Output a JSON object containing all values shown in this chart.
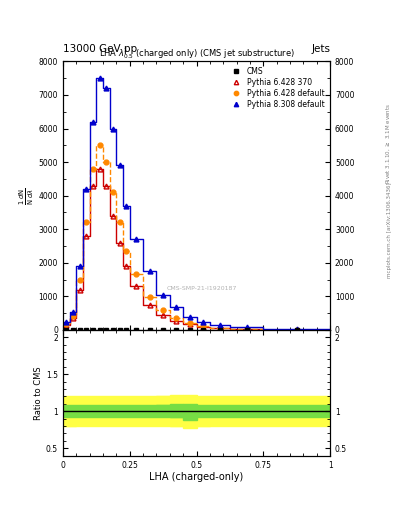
{
  "title": "13000 GeV pp",
  "title_right": "Jets",
  "plot_title": "LHA $\\lambda^{1}_{0.5}$ (charged only) (CMS jet substructure)",
  "xlabel": "LHA (charged-only)",
  "watermark": "CMS-SMP-21-I1920187",
  "cms_x": [
    0.0125,
    0.0375,
    0.0625,
    0.0875,
    0.1125,
    0.1375,
    0.1625,
    0.1875,
    0.2125,
    0.2375,
    0.275,
    0.325,
    0.375,
    0.425,
    0.475,
    0.525,
    0.5875,
    0.6875,
    0.875
  ],
  "cms_y": [
    0,
    0,
    0,
    0,
    0,
    0,
    0,
    0,
    0,
    0,
    0,
    0,
    0,
    0,
    0,
    0,
    0,
    0,
    0
  ],
  "pythia6_370_x": [
    0.0125,
    0.0375,
    0.0625,
    0.0875,
    0.1125,
    0.1375,
    0.1625,
    0.1875,
    0.2125,
    0.2375,
    0.275,
    0.325,
    0.375,
    0.425,
    0.475,
    0.525,
    0.5875,
    0.6875,
    0.875
  ],
  "pythia6_370_y": [
    150,
    350,
    1200,
    2800,
    4300,
    4800,
    4300,
    3400,
    2600,
    1900,
    1300,
    750,
    450,
    270,
    180,
    90,
    50,
    25,
    4
  ],
  "pythia6_def_x": [
    0.0125,
    0.0375,
    0.0625,
    0.0875,
    0.1125,
    0.1375,
    0.1625,
    0.1875,
    0.2125,
    0.2375,
    0.275,
    0.325,
    0.375,
    0.425,
    0.475,
    0.525,
    0.5875,
    0.6875,
    0.875
  ],
  "pythia6_def_y": [
    180,
    420,
    1500,
    3200,
    4800,
    5500,
    5000,
    4100,
    3200,
    2350,
    1650,
    980,
    590,
    340,
    195,
    115,
    65,
    32,
    5
  ],
  "pythia8_def_x": [
    0.0125,
    0.0375,
    0.0625,
    0.0875,
    0.1125,
    0.1375,
    0.1625,
    0.1875,
    0.2125,
    0.2375,
    0.275,
    0.325,
    0.375,
    0.425,
    0.475,
    0.525,
    0.5875,
    0.6875,
    0.875
  ],
  "pythia8_def_y": [
    220,
    520,
    1900,
    4200,
    6200,
    7500,
    7200,
    6000,
    4900,
    3700,
    2700,
    1750,
    1050,
    670,
    380,
    235,
    140,
    72,
    13
  ],
  "ylim_main": [
    0,
    8000
  ],
  "xlim": [
    0,
    1
  ],
  "ratio_ylim": [
    0.4,
    2.1
  ],
  "color_cms": "#000000",
  "color_p6_370": "#cc0000",
  "color_p6_def": "#ff8800",
  "color_p8_def": "#0000cc",
  "green_band_lo": 0.92,
  "green_band_hi": 1.08,
  "yellow_band_lo": 0.8,
  "yellow_band_hi": 1.2,
  "ratio_green_color": "#77dd44",
  "ratio_yellow_color": "#ffff44",
  "bin_edges": [
    0.0,
    0.025,
    0.05,
    0.075,
    0.1,
    0.125,
    0.15,
    0.175,
    0.2,
    0.225,
    0.25,
    0.3,
    0.35,
    0.4,
    0.45,
    0.5,
    0.55,
    0.625,
    0.75,
    1.0
  ]
}
